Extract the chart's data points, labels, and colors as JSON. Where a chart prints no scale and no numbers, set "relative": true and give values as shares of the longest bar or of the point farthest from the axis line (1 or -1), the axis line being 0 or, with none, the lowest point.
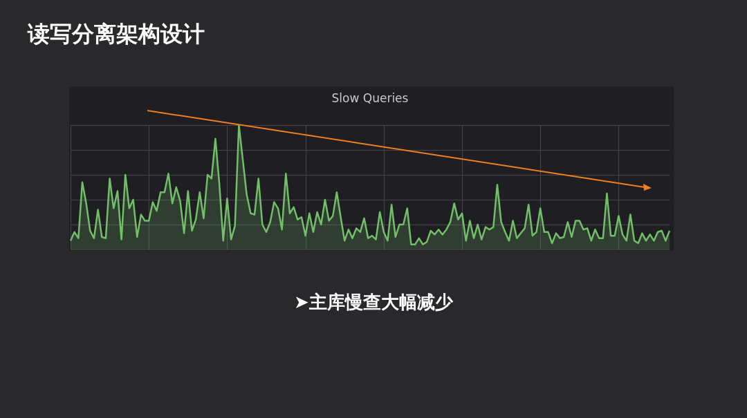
{
  "chart_data": {
    "type": "area",
    "title": "读写分离架构设计",
    "subtitle": "Slow Queries",
    "annotations": [
      "➤主库慢查大幅减少"
    ],
    "relative": true,
    "grid": true,
    "tick_labels": false,
    "categories": [
      null,
      null,
      null,
      null,
      null,
      null,
      null,
      null,
      null,
      null,
      null,
      null,
      null,
      null,
      null,
      null,
      null,
      null,
      null,
      null,
      null,
      null,
      null,
      null,
      null,
      null,
      null,
      null,
      null,
      null,
      null,
      null,
      null,
      null,
      null,
      null,
      null,
      null,
      null,
      null,
      null,
      null,
      null,
      null,
      null,
      null,
      null,
      null,
      null,
      null,
      null,
      null,
      null,
      null,
      null,
      null,
      null,
      null,
      null,
      null,
      null,
      null,
      null,
      null,
      null,
      null,
      null,
      null,
      null,
      null,
      null,
      null,
      null,
      null,
      null,
      null,
      null,
      null,
      null,
      null,
      null,
      null,
      null,
      null,
      null,
      null,
      null,
      null,
      null,
      null,
      null,
      null,
      null,
      null,
      null,
      null,
      null,
      null,
      null,
      null,
      null,
      null,
      null,
      null,
      null,
      null,
      null,
      null,
      null,
      null,
      null,
      null,
      null,
      null,
      null,
      null,
      null,
      null,
      null,
      null,
      null,
      null,
      null,
      null,
      null,
      null,
      null,
      null,
      null,
      null,
      null,
      null,
      null,
      null,
      null,
      null,
      null,
      null,
      null,
      null,
      null,
      null,
      null,
      null,
      null,
      null,
      null,
      null,
      null,
      null,
      null,
      null,
      null,
      null
    ],
    "series": [
      {
        "color": "#73bf69",
        "values": [
          0.07,
          0.14,
          0.09,
          0.54,
          0.37,
          0.15,
          0.09,
          0.32,
          0.1,
          0.09,
          0.57,
          0.33,
          0.47,
          0.08,
          0.6,
          0.33,
          0.4,
          0.1,
          0.28,
          0.23,
          0.23,
          0.38,
          0.31,
          0.46,
          0.46,
          0.61,
          0.37,
          0.5,
          0.39,
          0.13,
          0.47,
          0.15,
          0.24,
          0.46,
          0.25,
          0.6,
          0.57,
          0.89,
          0.53,
          0.07,
          0.41,
          0.08,
          0.19,
          1,
          0.72,
          0.44,
          0.29,
          0.28,
          0.57,
          0.2,
          0.14,
          0.22,
          0.38,
          0.33,
          0.16,
          0.61,
          0.29,
          0.34,
          0.24,
          0.26,
          0.11,
          0.29,
          0.14,
          0.3,
          0.2,
          0.4,
          0.23,
          0.27,
          0.46,
          0.26,
          0.07,
          0.16,
          0.09,
          0.17,
          0.14,
          0.25,
          0.09,
          0.11,
          0.08,
          0.3,
          0.14,
          0.07,
          0.36,
          0.1,
          0.2,
          0.2,
          0.33,
          0.04,
          0.04,
          0.09,
          0.04,
          0.06,
          0.15,
          0.12,
          0.16,
          0.12,
          0.16,
          0.22,
          0.37,
          0.24,
          0.29,
          0.07,
          0.23,
          0.09,
          0.2,
          0.08,
          0.18,
          0.16,
          0.18,
          0.52,
          0.22,
          0.14,
          0.07,
          0.23,
          0.09,
          0.13,
          0.17,
          0.36,
          0.11,
          0.14,
          0.33,
          0.14,
          0.14,
          0.05,
          0.13,
          0.09,
          0.1,
          0.22,
          0.1,
          0.23,
          0.23,
          0.16,
          0.17,
          0.07,
          0.16,
          0.09,
          0.09,
          0.45,
          0.11,
          0.11,
          0.27,
          0.12,
          0.07,
          0.28,
          0.07,
          0.05,
          0.13,
          0.07,
          0.12,
          0.07,
          0.14,
          0.15,
          0.07,
          0.15
        ]
      }
    ]
  }
}
